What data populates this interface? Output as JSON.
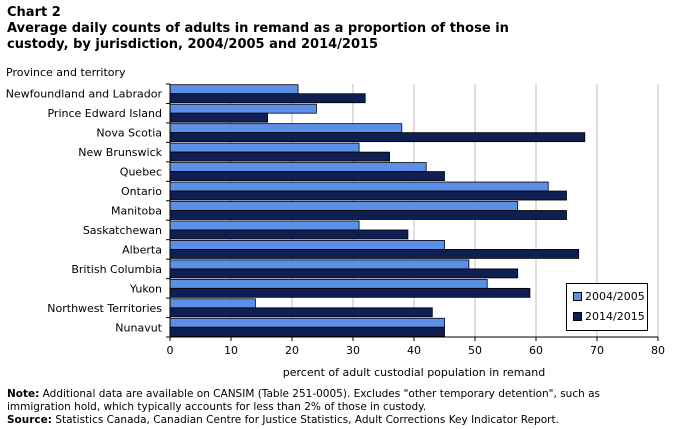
{
  "header": {
    "chart_label": "Chart 2",
    "title_line1": "Average daily counts of adults in remand as a proportion  of those in",
    "title_line2": "custody, by jurisdiction,  2004/2005  and 2014/2015"
  },
  "notes": {
    "note_label": "Note:",
    "note_text": " Additional data are available on CANSIM (Table 251-0005). Excludes \"other temporary detention\", such as immigration hold, which typically accounts for less than 2% of those in custody.",
    "source_label": "Source:",
    "source_text": " Statistics Canada, Canadian Centre for Justice Statistics, Adult Corrections Key Indicator Report."
  },
  "chart_data": {
    "type": "bar",
    "orientation": "horizontal",
    "ylabel": "Province and territory",
    "xlabel": "percent of adult custodial population in remand",
    "xlim": [
      0,
      80
    ],
    "xticks": [
      0,
      10,
      20,
      30,
      40,
      50,
      60,
      70,
      80
    ],
    "grid": "vertical",
    "legend_position": "bottom-right",
    "categories": [
      "Newfoundland and Labrador",
      "Prince Edward Island",
      "Nova Scotia",
      "New Brunswick",
      "Quebec",
      "Ontario",
      "Manitoba",
      "Saskatchewan",
      "Alberta",
      "British Columbia",
      "Yukon",
      "Northwest Territories",
      "Nunavut"
    ],
    "series": [
      {
        "name": "2004/2005",
        "color": "#5b8fe8",
        "values": [
          21,
          24,
          38,
          31,
          42,
          62,
          57,
          31,
          45,
          49,
          52,
          14,
          45
        ]
      },
      {
        "name": "2014/2015",
        "color": "#0f1f52",
        "values": [
          32,
          16,
          68,
          36,
          45,
          65,
          65,
          39,
          67,
          57,
          59,
          43,
          45
        ]
      }
    ]
  }
}
